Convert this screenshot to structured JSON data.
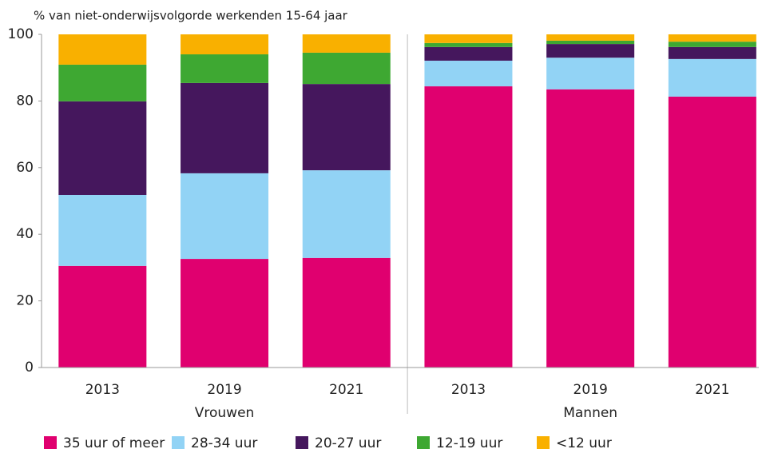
{
  "chart_data": {
    "type": "stacked_bar",
    "y_axis_title": "% van niet-onderwijsvolgorde werkenden 15-64 jaar",
    "categories": [
      "2013",
      "2019",
      "2021",
      "2013",
      "2019",
      "2021"
    ],
    "groups": [
      "Vrouwen",
      "Mannen"
    ],
    "series": [
      {
        "name": "35 uur of meer",
        "color": "#e0006f",
        "values": [
          30.5,
          32.6,
          32.9,
          84.4,
          83.5,
          81.3
        ]
      },
      {
        "name": "28-34 uur",
        "color": "#92d3f5",
        "values": [
          21.3,
          25.7,
          26.3,
          7.7,
          9.5,
          11.3
        ]
      },
      {
        "name": "20-27 uur",
        "color": "#45175d",
        "values": [
          28.1,
          27.1,
          25.9,
          4.1,
          4.1,
          3.6
        ]
      },
      {
        "name": "12-19 uur",
        "color": "#3ea832",
        "values": [
          11.0,
          8.6,
          9.4,
          1.2,
          1.0,
          1.6
        ]
      },
      {
        "name": "<12 uur",
        "color": "#f9b000",
        "values": [
          9.1,
          6.0,
          5.5,
          2.6,
          1.9,
          2.2
        ]
      }
    ],
    "ylim": [
      0,
      100
    ],
    "yticks": [
      0,
      20,
      40,
      60,
      80,
      100
    ],
    "grid": false
  }
}
